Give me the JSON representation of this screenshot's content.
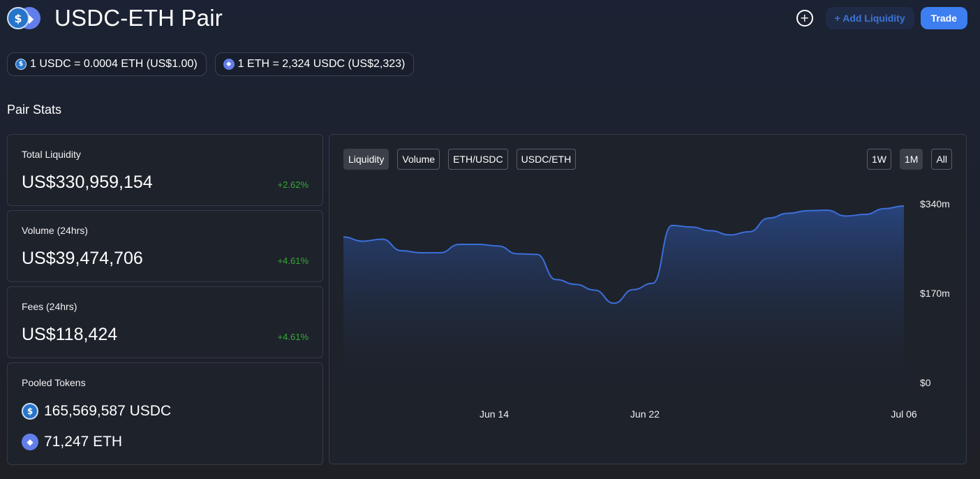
{
  "header": {
    "title": "USDC-ETH Pair",
    "add_liquidity_label": "+ Add Liquidity",
    "trade_label": "Trade",
    "plus_icon": "plus-circle-icon"
  },
  "rates": [
    {
      "token": "usdc",
      "text": "1 USDC = 0.0004 ETH (US$1.00)"
    },
    {
      "token": "eth",
      "text": "1 ETH = 2,324 USDC (US$2,323)"
    }
  ],
  "section_title": "Pair Stats",
  "stats": [
    {
      "label": "Total Liquidity",
      "value": "US$330,959,154",
      "change": "+2.62%"
    },
    {
      "label": "Volume (24hrs)",
      "value": "US$39,474,706",
      "change": "+4.61%"
    },
    {
      "label": "Fees (24hrs)",
      "value": "US$118,424",
      "change": "+4.61%"
    }
  ],
  "pooled": {
    "label": "Pooled Tokens",
    "usdc": "165,569,587 USDC",
    "eth": "71,247 ETH"
  },
  "chart_tabs": [
    "Liquidity",
    "Volume",
    "ETH/USDC",
    "USDC/ETH"
  ],
  "chart_ranges": [
    "1W",
    "1M",
    "All"
  ],
  "active_tab": "Liquidity",
  "active_range": "1M",
  "colors": {
    "accent": "#3d7ef0",
    "positive": "#36a838",
    "line": "#3b6fd8"
  },
  "chart_data": {
    "type": "area",
    "title": "",
    "xlabel": "",
    "ylabel": "",
    "x_ticks": [
      "Jun 14",
      "Jun 22",
      "Jul 06"
    ],
    "y_ticks": [
      "$0",
      "$170m",
      "$340m"
    ],
    "ylim": [
      0,
      340
    ],
    "unit": "US$ millions",
    "series": [
      {
        "values": [
          277,
          269,
          273,
          251,
          247,
          247,
          263,
          263,
          260,
          245,
          244,
          196,
          187,
          176,
          151,
          177,
          189,
          299,
          296,
          289,
          281,
          287,
          313,
          322,
          327,
          328,
          317,
          320,
          331,
          336
        ]
      }
    ]
  }
}
